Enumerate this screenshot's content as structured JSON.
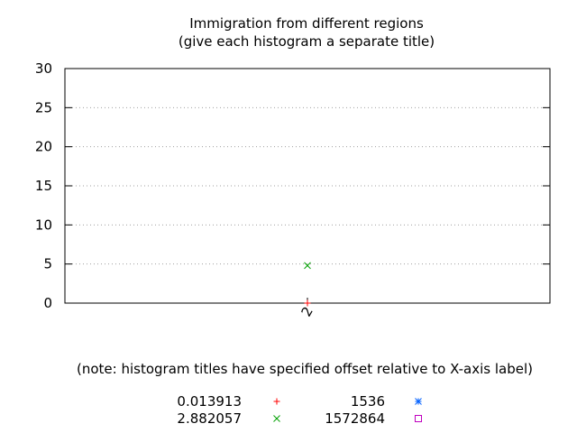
{
  "chart_data": {
    "type": "scatter",
    "title": "Immigration from different regions",
    "subtitle": "(give each histogram a separate title)",
    "xlabel": "",
    "ylabel": "",
    "note": "(note: histogram titles have specified offset relative to X-axis label)",
    "ylim": [
      0,
      30
    ],
    "yticks": [
      0,
      5,
      10,
      15,
      20,
      25,
      30
    ],
    "xlim": [
      1,
      3
    ],
    "xticks": [
      {
        "value": 2,
        "label": "2"
      }
    ],
    "grid": "horizontal dotted",
    "legend_position": "bottom",
    "series": [
      {
        "name": "0.013913",
        "marker": "plus",
        "color": "#ff0000",
        "points": [
          {
            "x": 2,
            "y": 0
          }
        ]
      },
      {
        "name": "2.882057",
        "marker": "cross",
        "color": "#00a000",
        "points": [
          {
            "x": 2,
            "y": 4.8
          }
        ]
      },
      {
        "name": "1536",
        "marker": "star",
        "color": "#0060ff",
        "points": []
      },
      {
        "name": "1572864",
        "marker": "square",
        "color": "#c000c0",
        "points": []
      }
    ]
  }
}
